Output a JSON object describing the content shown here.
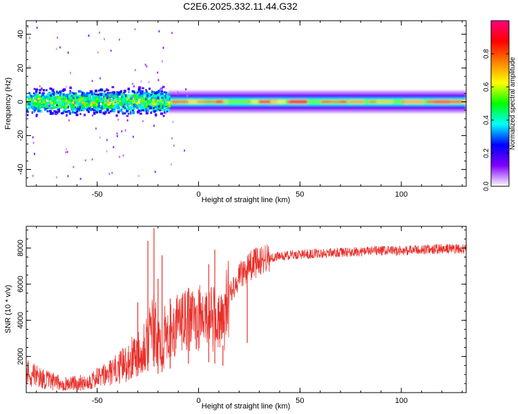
{
  "title": "C2E6.2025.332.11.44.G32",
  "chart_data": [
    {
      "type": "heatmap",
      "xlabel": "Height of straight line (km)",
      "ylabel": "Frequency (Hz)",
      "xlim": [
        -85,
        132
      ],
      "ylim": [
        -50,
        48
      ],
      "xticks": [
        -50,
        0,
        50,
        100
      ],
      "yticks": [
        -40,
        -20,
        0,
        20,
        40
      ],
      "colorbar": {
        "label": "Normalized spectral amplitude",
        "range": [
          0,
          1
        ],
        "ticks": [
          "0.0",
          "0.2",
          "0.4",
          "0.6",
          "0.8"
        ],
        "colors": [
          "#ffffff",
          "#8000ff",
          "#0000ff",
          "#00ffff",
          "#00ff00",
          "#ffff00",
          "#ff8000",
          "#ff0000",
          "#ff0080"
        ]
      },
      "ridge": {
        "center_frequency_hz": 0,
        "scattered_region_km": [
          -85,
          -15
        ],
        "scattered_halfwidth_hz": 10,
        "steady_region_km": [
          -15,
          132
        ],
        "steady_halfwidth_hz": 4,
        "peak_amplitude": 0.9
      }
    },
    {
      "type": "line",
      "xlabel": "Height of straight line (km)",
      "ylabel": "SNR (10 * v/v)",
      "xlim": [
        -85,
        132
      ],
      "ylim": [
        0,
        9200
      ],
      "xticks": [
        -50,
        0,
        50,
        100
      ],
      "yticks": [
        2000,
        4000,
        6000,
        8000
      ],
      "series": [
        {
          "name": "SNR",
          "color": "#e8302a",
          "x": [
            -85,
            -80,
            -75,
            -70,
            -65,
            -60,
            -55,
            -50,
            -45,
            -40,
            -35,
            -30,
            -25,
            -22,
            -20,
            -15,
            -10,
            -5,
            0,
            5,
            10,
            12,
            15,
            20,
            25,
            30,
            35,
            40,
            50,
            60,
            70,
            80,
            90,
            100,
            110,
            120,
            132
          ],
          "y": [
            1200,
            900,
            700,
            550,
            500,
            520,
            600,
            800,
            1000,
            1300,
            1700,
            2300,
            3000,
            3600,
            2600,
            3200,
            3800,
            4000,
            4100,
            4200,
            3900,
            3700,
            5500,
            6400,
            7000,
            7300,
            7450,
            7550,
            7650,
            7700,
            7750,
            7800,
            7850,
            7850,
            7900,
            7950,
            7950
          ]
        }
      ],
      "spikes": [
        {
          "x": -30,
          "y": 5000
        },
        {
          "x": -25,
          "y": 8400
        },
        {
          "x": -22,
          "y": 9100
        },
        {
          "x": -20,
          "y": 6300
        },
        {
          "x": -18,
          "y": 7600
        },
        {
          "x": -14,
          "y": 5200
        },
        {
          "x": -5,
          "y": 5800
        },
        {
          "x": 5,
          "y": 7100
        },
        {
          "x": 8,
          "y": 7900
        },
        {
          "x": 12,
          "y": 2600
        },
        {
          "x": 24,
          "y": 6900
        }
      ]
    }
  ]
}
